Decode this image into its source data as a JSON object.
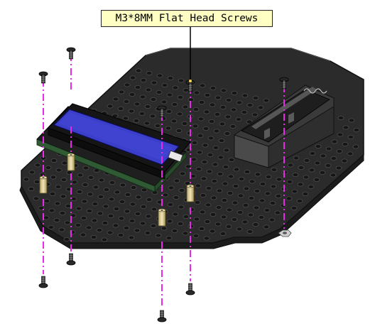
{
  "callout": {
    "label": "M3*8MM Flat Head Screws"
  },
  "colors": {
    "plate": "#2b2b2b",
    "plate_edge": "#4a4a4a",
    "holes": "#4f4f4f",
    "guide_line": "#e62be6",
    "lcd_screen": "#3a3ec8",
    "pcb": "#2f5a34",
    "brass": "#d9c890",
    "battery_box": "#3a3a3a",
    "callout_bg": "#ffffc4"
  },
  "icons": [
    "flat-head-screw-icon",
    "hex-standoff-icon",
    "hex-nut-icon"
  ]
}
